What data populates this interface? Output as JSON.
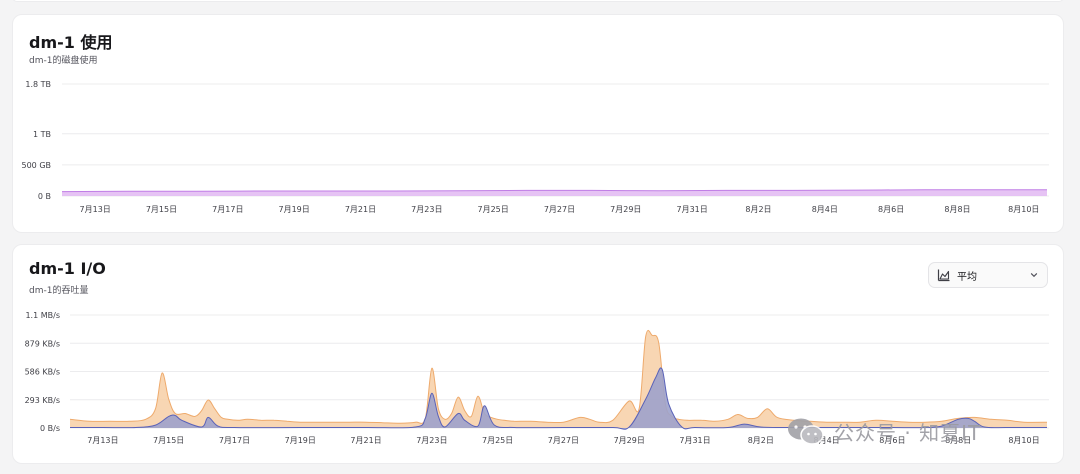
{
  "disk_panel": {
    "title": "dm-1 使用",
    "subtitle": "dm-1的磁盘使用"
  },
  "io_panel": {
    "title": "dm-1 I/O",
    "subtitle": "dm-1的吞吐量",
    "aggregation": {
      "selected": "平均",
      "icon": "area-chart-icon"
    }
  },
  "watermark": {
    "text": "公众号 · 知夏IT",
    "icon": "wechat-icon"
  },
  "colors": {
    "disk_fill": "#e3bdf3",
    "disk_line": "#c07ee6",
    "read_fill": "#f7cfa6",
    "read_line": "#eeaa6c",
    "write_fill": "#9da2cb",
    "write_line": "#5a62b8"
  },
  "chart_data": [
    {
      "type": "area",
      "title": "dm-1 使用",
      "ylabel": "",
      "yunit": "TB",
      "ylim": [
        0,
        1.8
      ],
      "ytick_values": [
        0,
        0.5,
        1,
        1.8
      ],
      "ytick_labels": [
        "0 B",
        "500 GB",
        "1 TB",
        "1.8 TB"
      ],
      "xlim": [
        0,
        29.7
      ],
      "xtick_values": [
        1,
        3,
        5,
        7,
        9,
        11,
        13,
        15,
        17,
        19,
        21,
        23,
        25,
        27,
        29
      ],
      "xtick_labels": [
        "7月13日",
        "7月15日",
        "7月17日",
        "7月19日",
        "7月21日",
        "7月23日",
        "7月25日",
        "7月27日",
        "7月29日",
        "7月31日",
        "8月2日",
        "8月4日",
        "8月6日",
        "8月8日",
        "8月10日"
      ],
      "grid": true,
      "series": [
        {
          "x": [
            0,
            2,
            4,
            6,
            8,
            10,
            12,
            14,
            16,
            18,
            20,
            22,
            24,
            26,
            28,
            29.7
          ],
          "values": [
            0.07,
            0.075,
            0.075,
            0.08,
            0.08,
            0.08,
            0.085,
            0.09,
            0.09,
            0.085,
            0.09,
            0.09,
            0.095,
            0.1,
            0.1,
            0.1
          ]
        }
      ]
    },
    {
      "type": "area",
      "title": "dm-1 I/O",
      "ylabel": "",
      "yunit": "KB/s",
      "ylim": [
        0,
        1172
      ],
      "ytick_values": [
        0,
        293,
        586,
        879,
        1172
      ],
      "ytick_labels": [
        "0 B/s",
        "293 KB/s",
        "586 KB/s",
        "879 KB/s",
        "1.1 MB/s"
      ],
      "xlim": [
        0,
        29.7
      ],
      "xtick_values": [
        1,
        3,
        5,
        7,
        9,
        11,
        13,
        15,
        17,
        19,
        21,
        23,
        25,
        27,
        29
      ],
      "xtick_labels": [
        "7月13日",
        "7月15日",
        "7月17日",
        "7月19日",
        "7月21日",
        "7月23日",
        "7月25日",
        "7月27日",
        "7月29日",
        "7月31日",
        "8月2日",
        "8月4日",
        "8月6日",
        "8月8日",
        "8月10日"
      ],
      "grid": true,
      "series": [
        {
          "x": [
            0,
            0.6,
            1.2,
            1.8,
            2.3,
            2.6,
            2.8,
            3.0,
            3.2,
            3.5,
            3.8,
            4.0,
            4.2,
            4.4,
            4.6,
            4.8,
            5.1,
            5.4,
            5.8,
            6.2,
            6.6,
            7,
            7.5,
            8,
            8.5,
            9,
            9.5,
            10,
            10.5,
            10.8,
            11.0,
            11.2,
            11.4,
            11.6,
            11.8,
            12.0,
            12.2,
            12.4,
            12.6,
            12.8,
            13.0,
            13.2,
            13.5,
            14,
            14.5,
            15,
            15.5,
            15.8,
            16.1,
            16.5,
            17,
            17.3,
            17.5,
            17.7,
            17.9,
            18.1,
            18.3,
            18.5,
            18.8,
            19.2,
            19.6,
            20,
            20.3,
            20.6,
            20.9,
            21.2,
            21.5,
            22,
            22.5,
            23,
            23.5,
            24,
            24.5,
            25,
            25.5,
            26,
            26.5,
            27,
            27.5,
            28,
            28.5,
            29,
            29.7
          ],
          "values": [
            90,
            70,
            70,
            70,
            90,
            200,
            570,
            300,
            150,
            150,
            120,
            180,
            290,
            200,
            110,
            90,
            80,
            90,
            80,
            80,
            70,
            60,
            60,
            60,
            60,
            60,
            55,
            50,
            60,
            100,
            620,
            200,
            90,
            150,
            320,
            180,
            120,
            330,
            150,
            110,
            90,
            80,
            70,
            70,
            60,
            60,
            110,
            90,
            60,
            80,
            280,
            200,
            950,
            960,
            880,
            250,
            120,
            90,
            80,
            80,
            70,
            90,
            140,
            100,
            110,
            200,
            110,
            80,
            70,
            60,
            60,
            60,
            80,
            70,
            60,
            60,
            70,
            100,
            110,
            90,
            80,
            60,
            60
          ]
        },
        {
          "x": [
            0,
            1,
            2,
            2.6,
            3.0,
            3.2,
            3.4,
            4.0,
            4.2,
            4.5,
            5,
            7,
            9,
            10.5,
            10.8,
            11.0,
            11.2,
            11.4,
            11.8,
            12.0,
            12.4,
            12.6,
            12.9,
            13.5,
            15,
            16.5,
            17,
            17.5,
            17.8,
            18.0,
            18.2,
            18.6,
            19,
            20,
            20.5,
            21,
            22,
            24,
            25,
            26,
            26.5,
            27,
            27.3,
            27.5,
            27.8,
            28.5,
            29.7
          ],
          "values": [
            5,
            5,
            5,
            30,
            120,
            130,
            80,
            10,
            110,
            20,
            5,
            5,
            5,
            10,
            100,
            360,
            120,
            10,
            150,
            80,
            20,
            230,
            30,
            5,
            5,
            5,
            10,
            300,
            520,
            610,
            250,
            10,
            5,
            5,
            40,
            10,
            5,
            5,
            5,
            5,
            20,
            90,
            100,
            70,
            10,
            5,
            5
          ]
        }
      ]
    }
  ]
}
